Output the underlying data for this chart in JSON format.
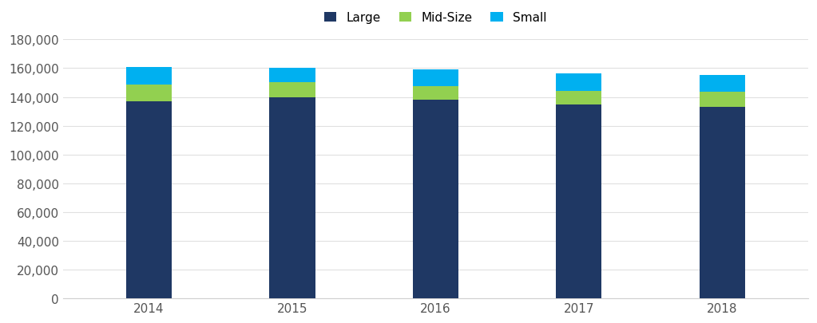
{
  "years": [
    "2014",
    "2015",
    "2016",
    "2017",
    "2018"
  ],
  "large": [
    137000,
    140000,
    138000,
    134500,
    133000
  ],
  "midsize": [
    11500,
    10000,
    9500,
    9500,
    10500
  ],
  "small": [
    12500,
    10000,
    11500,
    12500,
    11500
  ],
  "colors": {
    "large": "#1F3864",
    "midsize": "#92D050",
    "small": "#00B0F0"
  },
  "ylim": [
    0,
    180000
  ],
  "yticks": [
    0,
    20000,
    40000,
    60000,
    80000,
    100000,
    120000,
    140000,
    160000,
    180000
  ],
  "legend_labels": [
    "Large",
    "Mid-Size",
    "Small"
  ],
  "background_color": "#ffffff",
  "bar_width": 0.32
}
